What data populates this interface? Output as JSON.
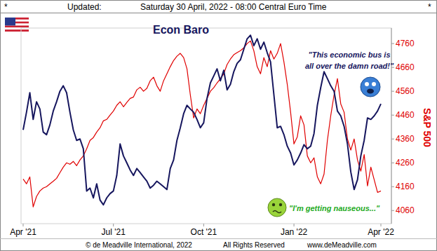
{
  "header": {
    "left": "*",
    "label": "Updated:",
    "date": "Saturday 30 April, 2022 - 08:00 Central Euro Time",
    "right": "*"
  },
  "chart_data": {
    "type": "line",
    "categories": [
      "Apr '21",
      null,
      null,
      null,
      null,
      null,
      null,
      null,
      null,
      null,
      null,
      null,
      null,
      null,
      null,
      null,
      null,
      null,
      null,
      null,
      null,
      null,
      null,
      null,
      null,
      null,
      null,
      "Jul '21",
      null,
      null,
      null,
      null,
      null,
      null,
      null,
      null,
      null,
      null,
      null,
      null,
      null,
      null,
      null,
      null,
      null,
      null,
      null,
      null,
      null,
      null,
      null,
      null,
      null,
      null,
      "Oct '21",
      null,
      null,
      null,
      null,
      null,
      null,
      null,
      null,
      null,
      null,
      null,
      null,
      null,
      null,
      null,
      null,
      null,
      null,
      null,
      null,
      null,
      null,
      null,
      null,
      null,
      null,
      "Jan '22",
      null,
      null,
      null,
      null,
      null,
      null,
      null,
      null,
      null,
      null,
      null,
      null,
      null,
      null,
      null,
      null,
      null,
      null,
      null,
      null,
      null,
      null,
      null,
      null,
      null,
      "Apr '22"
    ],
    "series": [
      {
        "name": "S&P 500",
        "color": "#e00000",
        "values": [
          4192,
          4172,
          4201,
          4075,
          4119,
          4142,
          4154,
          4160,
          4172,
          4183,
          4195,
          4219,
          4242,
          4260,
          4254,
          4266,
          4248,
          4272,
          4289,
          4319,
          4354,
          4366,
          4389,
          4407,
          4436,
          4442,
          4460,
          4477,
          4501,
          4516,
          4495,
          4513,
          4530,
          4536,
          4566,
          4577,
          4560,
          4572,
          4604,
          4619,
          4583,
          4560,
          4604,
          4633,
          4663,
          4689,
          4707,
          4719,
          4701,
          4654,
          4545,
          4448,
          4486,
          4466,
          4501,
          4530,
          4560,
          4575,
          4595,
          4613,
          4633,
          4672,
          4695,
          4713,
          4722,
          4730,
          4742,
          4760,
          4771,
          4730,
          4663,
          4633,
          4701,
          4663,
          4730,
          4695,
          4719,
          4760,
          4683,
          4589,
          4472,
          4339,
          4369,
          4457,
          4419,
          4289,
          4260,
          4281,
          4201,
          4172,
          4213,
          4354,
          4457,
          4545,
          4613,
          4507,
          4472,
          4360,
          4313,
          4360,
          4272,
          4225,
          4295,
          4163,
          4242,
          4189,
          4136,
          4142
        ]
      },
      {
        "name": "Econ Baro",
        "color": "#16165e",
        "values": [
          4398,
          4472,
          4554,
          4442,
          4516,
          4486,
          4389,
          4378,
          4419,
          4477,
          4516,
          4560,
          4583,
          4554,
          4472,
          4398,
          4354,
          4360,
          4319,
          4142,
          4154,
          4113,
          4172,
          4104,
          4084,
          4113,
          4131,
          4142,
          4207,
          4339,
          4289,
          4260,
          4230,
          4207,
          4236,
          4219,
          4201,
          4183,
          4154,
          4166,
          4183,
          4172,
          4160,
          4148,
          4236,
          4272,
          4354,
          4407,
          4466,
          4501,
          4486,
          4472,
          4442,
          4407,
          4428,
          4530,
          4595,
          4624,
          4654,
          4604,
          4648,
          4566,
          4589,
          4642,
          4677,
          4692,
          4736,
          4780,
          4795,
          4751,
          4780,
          4736,
          4766,
          4722,
          4683,
          4545,
          4407,
          4413,
          4378,
          4330,
          4301,
          4251,
          4272,
          4301,
          4336,
          4319,
          4330,
          4383,
          4501,
          4575,
          4642,
          4613,
          4583,
          4560,
          4477,
          4457,
          4413,
          4339,
          4222,
          4148,
          4189,
          4289,
          4354,
          4448,
          4442,
          4457,
          4477,
          4507
        ]
      }
    ],
    "ylim": [
      4005,
      4825
    ],
    "yticks": [
      4060,
      4160,
      4260,
      4360,
      4460,
      4560,
      4660,
      4760
    ],
    "annotations": [
      [
        "\"This economic bus is",
        "all over the damn road!\""
      ],
      [
        "\"I'm getting nauseous...\""
      ]
    ]
  },
  "footer": {
    "copyright": "© de Meadville International, 2022",
    "rights": "All Rights Reserved",
    "site": "www.deMeadville.com"
  }
}
